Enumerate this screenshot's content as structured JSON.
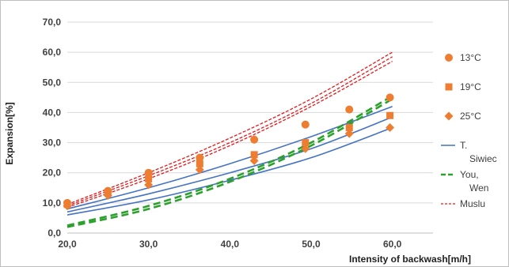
{
  "chart_data": {
    "type": "scatter",
    "xlabel": "Intensity of backwash[m/h]",
    "ylabel": "Expansion[%]",
    "xlim": [
      20,
      65
    ],
    "ylim": [
      0,
      70
    ],
    "x_ticks": [
      "20,0",
      "30,0",
      "40,0",
      "50,0",
      "60,0"
    ],
    "y_ticks": [
      "0,0",
      "10,0",
      "20,0",
      "30,0",
      "40,0",
      "50,0",
      "60,0",
      "70,0"
    ],
    "grid": "horizontal",
    "legend_position": "right",
    "series": [
      {
        "name": "13°C",
        "kind": "points",
        "marker": "circle",
        "color": "#ED7D31",
        "x": [
          20,
          25,
          30,
          36.3,
          43,
          49.3,
          54.7,
          59.7
        ],
        "y": [
          10,
          14,
          20,
          25,
          31,
          36,
          41,
          45
        ]
      },
      {
        "name": "19°C",
        "kind": "points",
        "marker": "square",
        "color": "#ED7D31",
        "x": [
          20,
          25,
          30,
          36.3,
          43,
          49.3,
          54.7,
          59.7
        ],
        "y": [
          9.5,
          13.5,
          18,
          23,
          26,
          30,
          35,
          39
        ]
      },
      {
        "name": "25°C",
        "kind": "points",
        "marker": "diamond",
        "color": "#ED7D31",
        "x": [
          20,
          25,
          30,
          36.3,
          43,
          49.3,
          54.7,
          59.7
        ],
        "y": [
          9,
          12.5,
          16,
          21,
          24,
          28,
          33,
          35
        ]
      },
      {
        "name": "T. Siwiec",
        "kind": "lines",
        "style": "solid",
        "color": "#4472C4",
        "lines": [
          {
            "x": [
              20,
              30,
              40,
              50,
              60
            ],
            "y": [
              8,
              15,
              23,
              32,
              42
            ]
          },
          {
            "x": [
              20,
              30,
              40,
              50,
              60
            ],
            "y": [
              7,
              13,
              20,
              28,
              38.5
            ]
          },
          {
            "x": [
              20,
              30,
              40,
              50,
              60
            ],
            "y": [
              6,
              11,
              17.5,
              25,
              35
            ]
          }
        ]
      },
      {
        "name": "You, Wen",
        "kind": "lines",
        "style": "dashed",
        "color": "#2CA02C",
        "lines": [
          {
            "x": [
              20,
              30,
              40,
              50,
              60
            ],
            "y": [
              2.5,
              9,
              18,
              30,
              45.5
            ]
          },
          {
            "x": [
              20,
              30,
              40,
              50,
              60
            ],
            "y": [
              2,
              8,
              17,
              29,
              44.5
            ]
          }
        ]
      },
      {
        "name": "Muslu",
        "kind": "lines",
        "style": "dotted",
        "color": "#E41A1C",
        "lines": [
          {
            "x": [
              20,
              30,
              40,
              50,
              60
            ],
            "y": [
              9.5,
              20,
              31.5,
              44.5,
              60
            ]
          },
          {
            "x": [
              20,
              30,
              40,
              50,
              60
            ],
            "y": [
              9,
              19,
              30,
              43,
              58.5
            ]
          },
          {
            "x": [
              20,
              30,
              40,
              50,
              60
            ],
            "y": [
              8.5,
              18,
              29,
              42,
              57
            ]
          }
        ]
      }
    ],
    "legend": [
      {
        "label_lines": [
          "13°C"
        ],
        "marker": "circle"
      },
      {
        "label_lines": [
          "19°C"
        ],
        "marker": "square"
      },
      {
        "label_lines": [
          "25°C"
        ],
        "marker": "diamond"
      },
      {
        "label_lines": [
          "T.",
          "Siwiec"
        ],
        "marker": "line-solid"
      },
      {
        "label_lines": [
          "You,",
          "Wen"
        ],
        "marker": "line-dashed"
      },
      {
        "label_lines": [
          "Muslu"
        ],
        "marker": "line-dotted"
      }
    ]
  }
}
